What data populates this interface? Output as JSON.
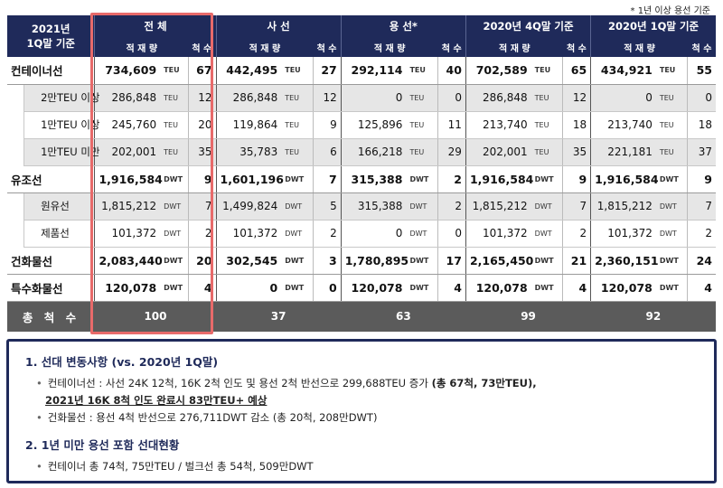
{
  "note": "* 1년 이상 용선 기준",
  "header": {
    "period_line1": "2021년",
    "period_line2": "1Q말 기준",
    "groups": [
      "전 체",
      "사 선",
      "용 선*",
      "2020년 4Q말 기준",
      "2020년 1Q말 기준"
    ],
    "sub_qty": "적 재 량",
    "sub_cnt": "척 수"
  },
  "rows": [
    {
      "label": "컨테이너선",
      "type": "main",
      "cells": [
        [
          "734,609",
          "TEU",
          "67"
        ],
        [
          "442,495",
          "TEU",
          "27"
        ],
        [
          "292,114",
          "TEU",
          "40"
        ],
        [
          "702,589",
          "TEU",
          "65"
        ],
        [
          "434,921",
          "TEU",
          "55"
        ]
      ]
    },
    {
      "label": "2만TEU 이상",
      "type": "sub gray",
      "cells": [
        [
          "286,848",
          "TEU",
          "12"
        ],
        [
          "286,848",
          "TEU",
          "12"
        ],
        [
          "0",
          "TEU",
          "0"
        ],
        [
          "286,848",
          "TEU",
          "12"
        ],
        [
          "0",
          "TEU",
          "0"
        ]
      ]
    },
    {
      "label": "1만TEU 이상",
      "type": "sub",
      "cells": [
        [
          "245,760",
          "TEU",
          "20"
        ],
        [
          "119,864",
          "TEU",
          "9"
        ],
        [
          "125,896",
          "TEU",
          "11"
        ],
        [
          "213,740",
          "TEU",
          "18"
        ],
        [
          "213,740",
          "TEU",
          "18"
        ]
      ]
    },
    {
      "label": "1만TEU 미만",
      "type": "sub gray",
      "cells": [
        [
          "202,001",
          "TEU",
          "35"
        ],
        [
          "35,783",
          "TEU",
          "6"
        ],
        [
          "166,218",
          "TEU",
          "29"
        ],
        [
          "202,001",
          "TEU",
          "35"
        ],
        [
          "221,181",
          "TEU",
          "37"
        ]
      ]
    },
    {
      "label": "유조선",
      "type": "main",
      "cells": [
        [
          "1,916,584",
          "DWT",
          "9"
        ],
        [
          "1,601,196",
          "DWT",
          "7"
        ],
        [
          "315,388",
          "DWT",
          "2"
        ],
        [
          "1,916,584",
          "DWT",
          "9"
        ],
        [
          "1,916,584",
          "DWT",
          "9"
        ]
      ]
    },
    {
      "label": "원유선",
      "type": "sub gray",
      "cells": [
        [
          "1,815,212",
          "DWT",
          "7"
        ],
        [
          "1,499,824",
          "DWT",
          "5"
        ],
        [
          "315,388",
          "DWT",
          "2"
        ],
        [
          "1,815,212",
          "DWT",
          "7"
        ],
        [
          "1,815,212",
          "DWT",
          "7"
        ]
      ]
    },
    {
      "label": "제품선",
      "type": "sub",
      "cells": [
        [
          "101,372",
          "DWT",
          "2"
        ],
        [
          "101,372",
          "DWT",
          "2"
        ],
        [
          "0",
          "DWT",
          "0"
        ],
        [
          "101,372",
          "DWT",
          "2"
        ],
        [
          "101,372",
          "DWT",
          "2"
        ]
      ]
    },
    {
      "label": "건화물선",
      "type": "main",
      "cells": [
        [
          "2,083,440",
          "DWT",
          "20"
        ],
        [
          "302,545",
          "DWT",
          "3"
        ],
        [
          "1,780,895",
          "DWT",
          "17"
        ],
        [
          "2,165,450",
          "DWT",
          "21"
        ],
        [
          "2,360,151",
          "DWT",
          "24"
        ]
      ]
    },
    {
      "label": "특수화물선",
      "type": "main",
      "cells": [
        [
          "120,078",
          "DWT",
          "4"
        ],
        [
          "0",
          "DWT",
          "0"
        ],
        [
          "120,078",
          "DWT",
          "4"
        ],
        [
          "120,078",
          "DWT",
          "4"
        ],
        [
          "120,078",
          "DWT",
          "4"
        ]
      ]
    }
  ],
  "total": {
    "label": "총 척 수",
    "values": [
      "100",
      "37",
      "63",
      "99",
      "92"
    ]
  },
  "summary": {
    "section1_title": "1. 선대 변동사항 (vs. 2020년 1Q말)",
    "item1_text": "컨테이너선 : 사선 24K 12척, 16K 2척 인도 및 용선 2척 반선으로 299,688TEU 증가",
    "item1_bold": "(총 67척, 73만TEU),",
    "item1_underline": "2021년 16K 8척 인도 완료시 83만TEU+ 예상",
    "item2_text": "건화물선 : 용선 4척 반선으로 276,711DWT 감소 (총 20척, 208만DWT)",
    "section2_title": "2. 1년 미만 용선 포함 선대현황",
    "item3_text": "컨테이너 총 74척, 75만TEU / 벌크선 총 54척, 509만DWT",
    "bullet": "•"
  }
}
